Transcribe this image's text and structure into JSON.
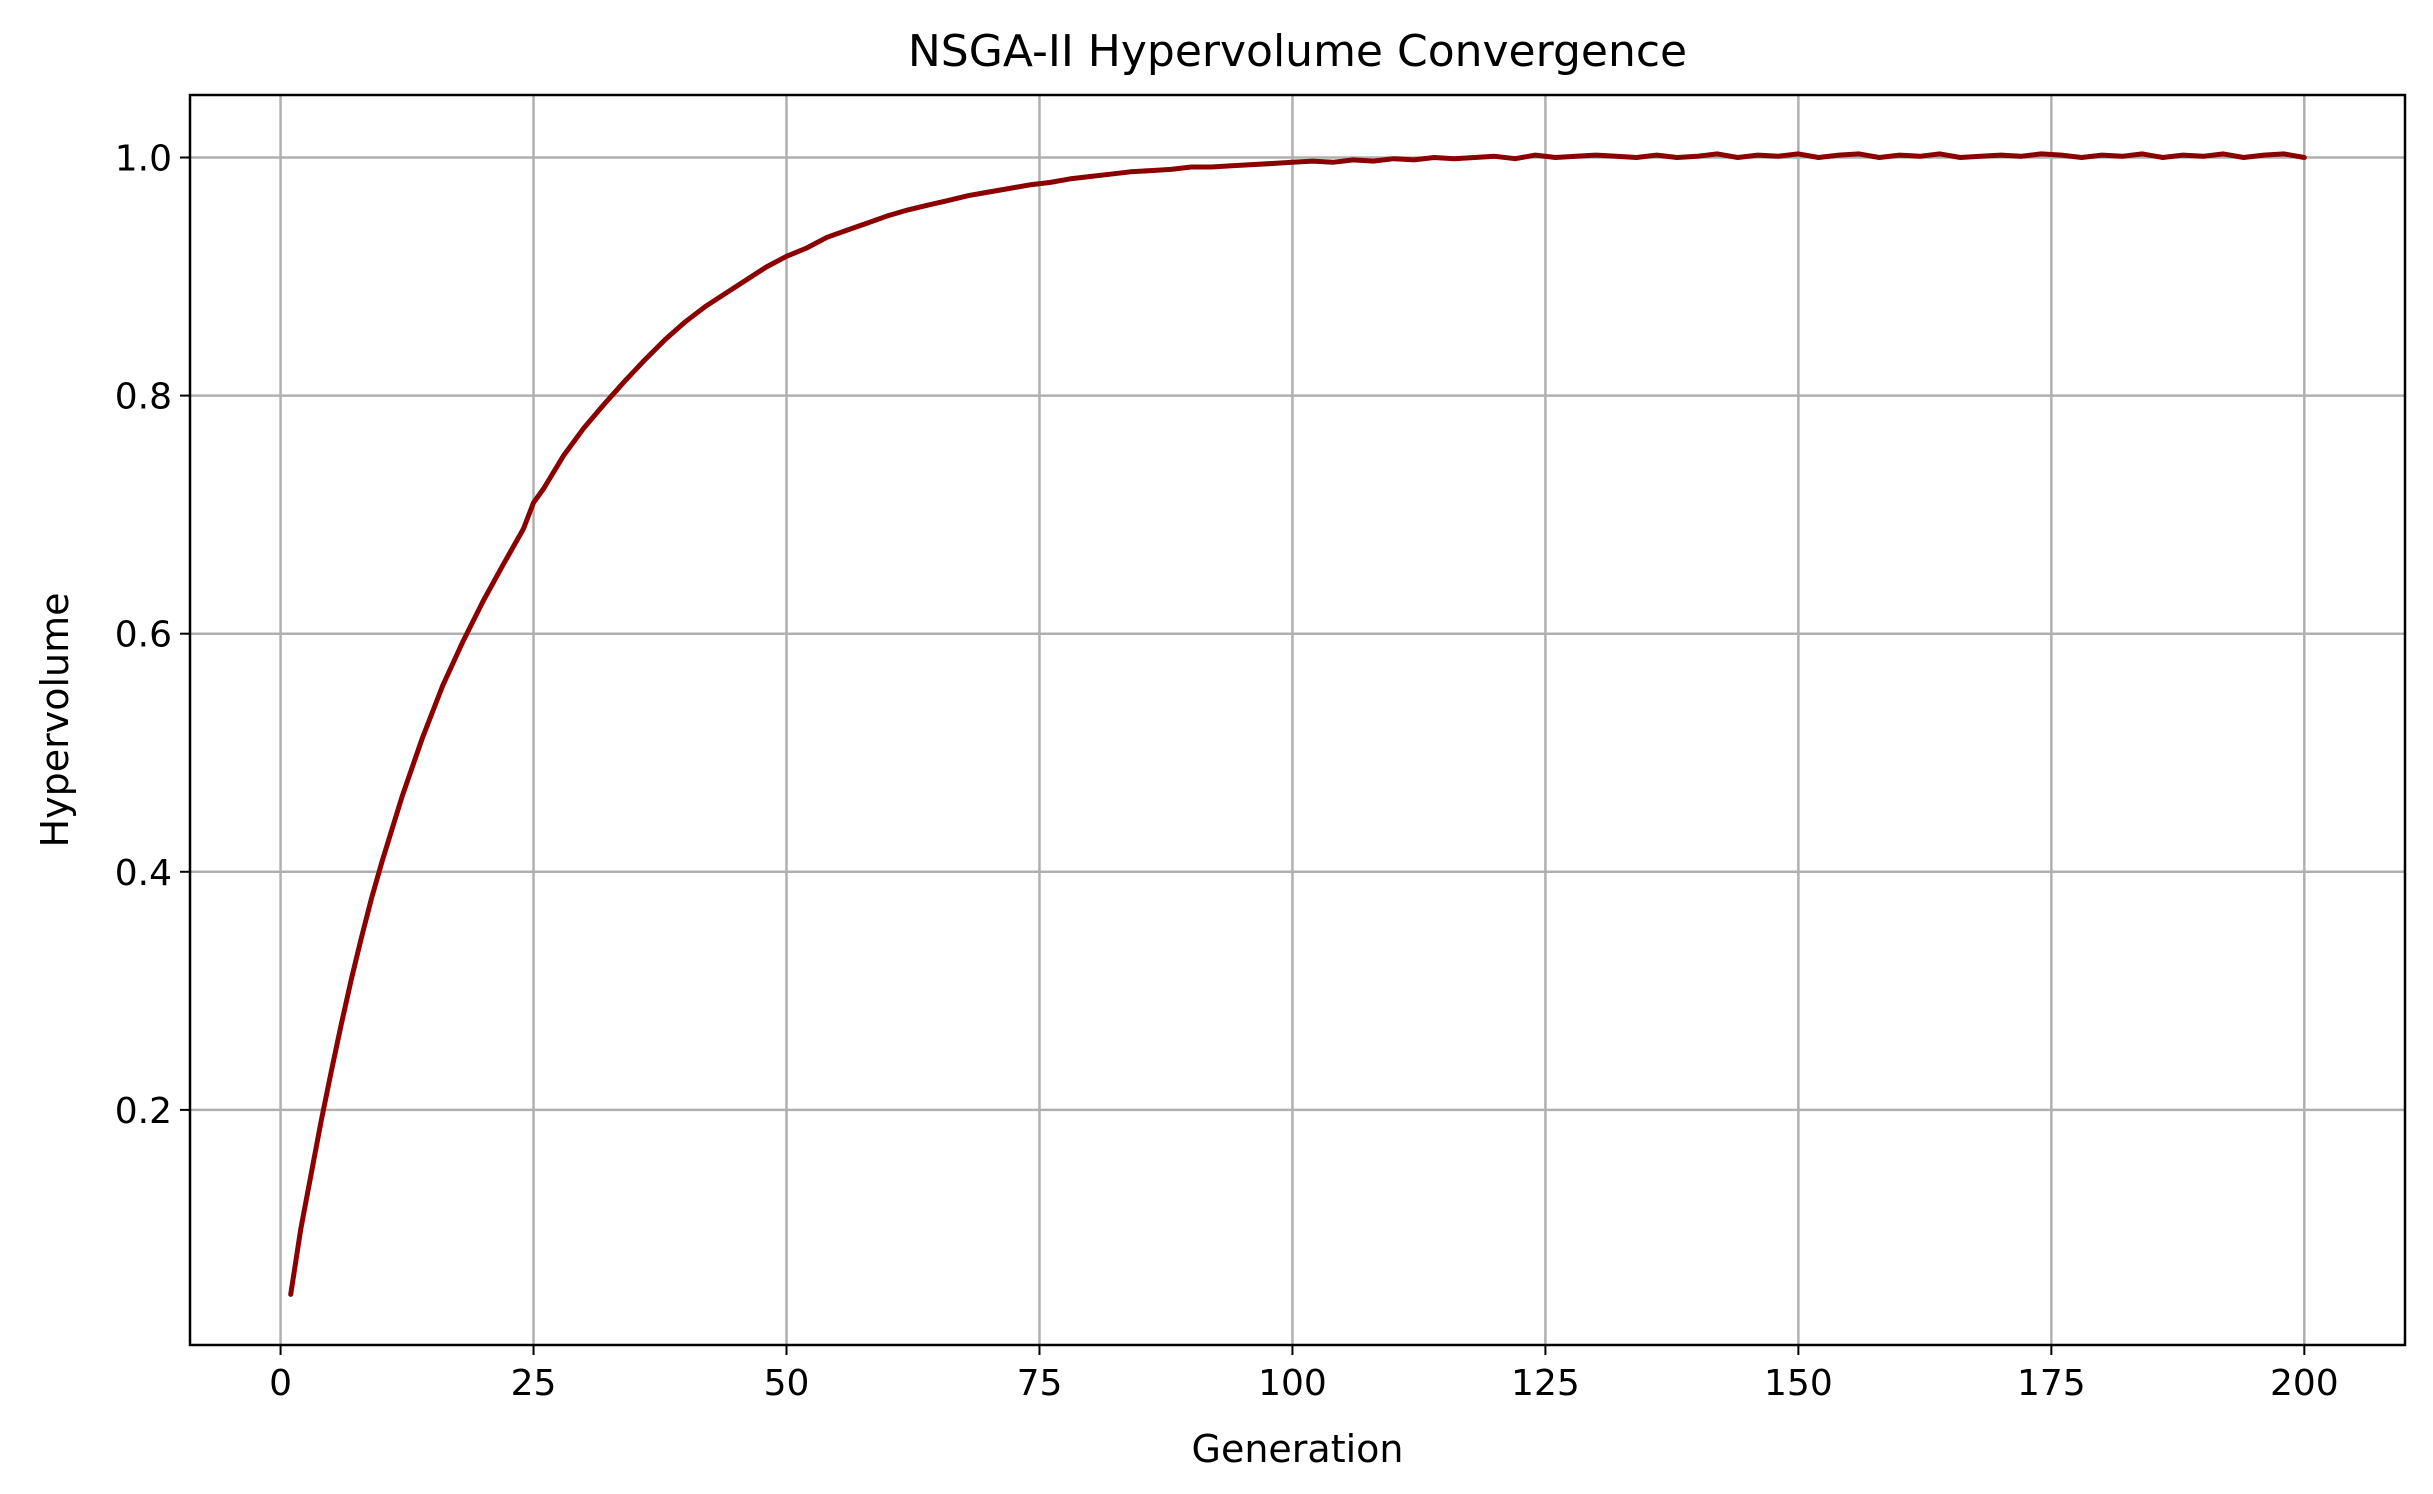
{
  "chart_data": {
    "type": "line",
    "title": "NSGA-II Hypervolume Convergence",
    "xlabel": "Generation",
    "ylabel": "Hypervolume",
    "xlim": [
      -8.95,
      209.95
    ],
    "ylim": [
      0.0025,
      1.0525
    ],
    "x_ticks": [
      0,
      25,
      50,
      75,
      100,
      125,
      150,
      175,
      200
    ],
    "x_tick_labels": [
      "0",
      "25",
      "50",
      "75",
      "100",
      "125",
      "150",
      "175",
      "200"
    ],
    "y_ticks": [
      0.2,
      0.4,
      0.6,
      0.8,
      1.0
    ],
    "y_tick_labels": [
      "0.2",
      "0.4",
      "0.6",
      "0.8",
      "1.0"
    ],
    "grid": true,
    "legend": "none",
    "series": [
      {
        "color": "#8b0000",
        "x": [
          1,
          2,
          3,
          4,
          5,
          6,
          7,
          8,
          9,
          10,
          12,
          14,
          16,
          18,
          20,
          22,
          24,
          25,
          26,
          28,
          30,
          32,
          34,
          36,
          38,
          40,
          42,
          44,
          46,
          48,
          50,
          52,
          54,
          56,
          58,
          60,
          62,
          64,
          66,
          68,
          70,
          72,
          74,
          76,
          78,
          80,
          82,
          84,
          86,
          88,
          90,
          92,
          94,
          96,
          98,
          100,
          102,
          104,
          106,
          108,
          110,
          112,
          114,
          116,
          118,
          120,
          122,
          124,
          126,
          128,
          130,
          132,
          134,
          136,
          138,
          140,
          142,
          144,
          146,
          148,
          150,
          152,
          154,
          156,
          158,
          160,
          162,
          164,
          166,
          168,
          170,
          172,
          174,
          176,
          178,
          180,
          182,
          184,
          186,
          188,
          190,
          192,
          194,
          196,
          198,
          200
        ],
        "y": [
          0.045,
          0.1,
          0.145,
          0.19,
          0.232,
          0.272,
          0.31,
          0.345,
          0.378,
          0.408,
          0.463,
          0.512,
          0.556,
          0.593,
          0.627,
          0.658,
          0.688,
          0.71,
          0.722,
          0.75,
          0.773,
          0.793,
          0.812,
          0.83,
          0.847,
          0.862,
          0.875,
          0.886,
          0.897,
          0.908,
          0.917,
          0.924,
          0.933,
          0.939,
          0.945,
          0.951,
          0.956,
          0.96,
          0.964,
          0.968,
          0.971,
          0.974,
          0.977,
          0.979,
          0.982,
          0.984,
          0.986,
          0.988,
          0.989,
          0.99,
          0.992,
          0.992,
          0.993,
          0.994,
          0.995,
          0.996,
          0.997,
          0.996,
          0.998,
          0.997,
          0.999,
          0.998,
          1.0,
          0.999,
          1.0,
          1.001,
          0.999,
          1.002,
          1.0,
          1.001,
          1.002,
          1.001,
          1.0,
          1.002,
          1.0,
          1.001,
          1.003,
          1.0,
          1.002,
          1.001,
          1.003,
          1.0,
          1.002,
          1.003,
          1.0,
          1.002,
          1.001,
          1.003,
          1.0,
          1.001,
          1.002,
          1.001,
          1.003,
          1.002,
          1.0,
          1.002,
          1.001,
          1.003,
          1.0,
          1.002,
          1.001,
          1.003,
          1.0,
          1.002,
          1.003,
          1.0
        ]
      }
    ]
  }
}
